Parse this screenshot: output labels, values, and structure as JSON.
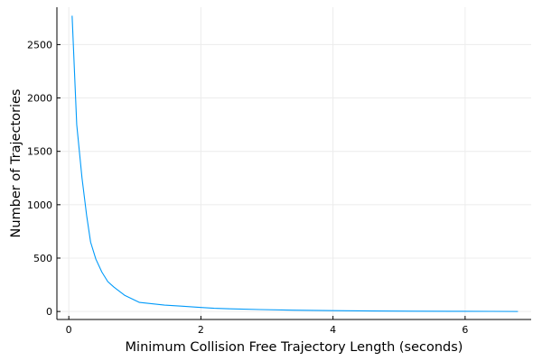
{
  "colors": {
    "line": "#009AFA",
    "grid": "#ececec",
    "axis": "#000000",
    "background": "#ffffff"
  },
  "chart_data": {
    "type": "line",
    "title": "",
    "xlabel": "Minimum Collision Free Trajectory Length (seconds)",
    "ylabel": "Number of Trajectories",
    "xlim": [
      -0.18,
      7.0
    ],
    "ylim": [
      -75,
      2850
    ],
    "xticks": [
      0,
      2,
      4,
      6
    ],
    "xtick_labels": [
      "0",
      "2",
      "4",
      "6"
    ],
    "yticks": [
      0,
      500,
      1000,
      1500,
      2000,
      2500
    ],
    "ytick_labels": [
      "0",
      "500",
      "1000",
      "1500",
      "2000",
      "2500"
    ],
    "grid": true,
    "legend": "none",
    "series": [
      {
        "x": [
          0.05,
          0.12,
          0.2,
          0.27,
          0.33,
          0.41,
          0.5,
          0.59,
          0.68,
          0.85,
          1.07,
          1.45,
          1.7,
          1.95,
          2.2,
          2.45,
          2.9,
          3.4,
          4.0,
          4.6,
          5.2,
          5.8,
          6.4,
          6.8
        ],
        "y": [
          2770,
          1750,
          1250,
          900,
          650,
          490,
          370,
          280,
          230,
          150,
          85,
          60,
          50,
          40,
          30,
          25,
          18,
          12,
          8,
          5,
          3,
          2,
          1,
          0
        ]
      }
    ]
  }
}
